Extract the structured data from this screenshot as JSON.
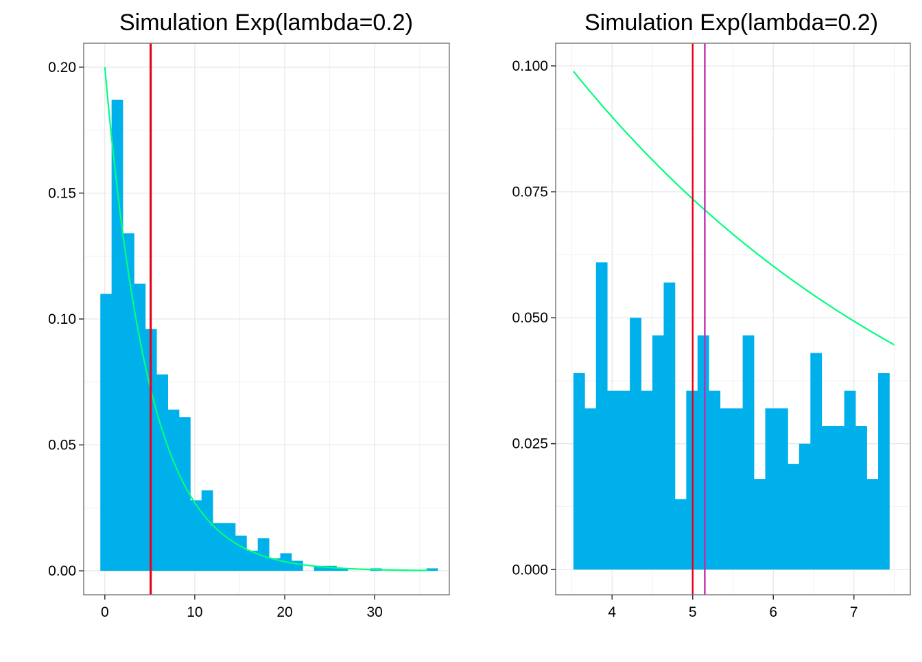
{
  "chart_data": [
    {
      "type": "bar",
      "title": "Simulation Exp(lambda=0.2)",
      "xlabel": "",
      "ylabel": "",
      "grid": true,
      "xlim": [
        -2.35,
        38.3
      ],
      "ylim": [
        -0.0095,
        0.2095
      ],
      "x_ticks": [
        "0",
        "10",
        "20",
        "30"
      ],
      "x_tick_values": [
        0,
        10,
        20,
        30
      ],
      "y_ticks": [
        "0.00",
        "0.05",
        "0.10",
        "0.15",
        "0.20"
      ],
      "y_tick_values": [
        0,
        0.05,
        0.1,
        0.15,
        0.2
      ],
      "bin_width": 1.25,
      "bin_left_edges": [
        -0.5,
        0.75,
        2.0,
        3.25,
        4.5,
        5.75,
        7.0,
        8.25,
        9.5,
        10.75,
        12.0,
        13.25,
        14.5,
        15.75,
        17.0,
        18.25,
        19.5,
        20.75,
        22.0,
        23.25,
        24.5,
        25.75,
        27.0,
        28.25,
        29.5,
        30.75,
        32.0,
        33.25,
        34.5,
        35.75
      ],
      "values": [
        0.11,
        0.187,
        0.134,
        0.114,
        0.096,
        0.078,
        0.064,
        0.061,
        0.028,
        0.032,
        0.019,
        0.019,
        0.014,
        0.008,
        0.013,
        0.005,
        0.007,
        0.004,
        0.0,
        0.002,
        0.002,
        0.001,
        0.0,
        0.0,
        0.001,
        0.0,
        0.0,
        0.0,
        0.0,
        0.001
      ],
      "bar_color": "#00b0eb",
      "density_curve": {
        "rate": 0.2,
        "x_range": [
          0,
          36
        ],
        "color": "#00ff7f"
      },
      "vlines": [
        {
          "x": 5.1,
          "color": "#e8001c"
        }
      ]
    },
    {
      "type": "bar",
      "title": "Simulation Exp(lambda=0.2)",
      "xlabel": "",
      "ylabel": "",
      "grid": true,
      "xlim": [
        3.3,
        7.7
      ],
      "ylim": [
        -0.005,
        0.1045
      ],
      "x_ticks": [
        "4",
        "5",
        "6",
        "7"
      ],
      "x_tick_values": [
        4,
        5,
        6,
        7
      ],
      "y_ticks": [
        "0.000",
        "0.025",
        "0.050",
        "0.075",
        "0.100"
      ],
      "y_tick_values": [
        0,
        0.025,
        0.05,
        0.075,
        0.1
      ],
      "bin_width": 0.1397,
      "bin_left_edges": [
        3.52,
        3.66,
        3.8,
        3.94,
        4.08,
        4.22,
        4.36,
        4.5,
        4.64,
        4.78,
        4.92,
        5.06,
        5.2,
        5.34,
        5.48,
        5.62,
        5.76,
        5.9,
        6.04,
        6.18,
        6.32,
        6.46,
        6.6,
        6.74,
        6.88,
        7.02,
        7.16,
        7.3
      ],
      "values": [
        0.039,
        0.032,
        0.061,
        0.0355,
        0.0355,
        0.05,
        0.0355,
        0.0465,
        0.057,
        0.014,
        0.0355,
        0.0465,
        0.0355,
        0.032,
        0.032,
        0.0465,
        0.018,
        0.032,
        0.032,
        0.021,
        0.025,
        0.043,
        0.0285,
        0.0285,
        0.0355,
        0.0285,
        0.018,
        0.039
      ],
      "bar_color": "#00b0eb",
      "density_curve": {
        "rate": 0.2,
        "x_range": [
          3.52,
          7.5
        ],
        "color": "#00ff7f"
      },
      "vlines": [
        {
          "x": 5.0,
          "color": "#e8001c"
        },
        {
          "x": 5.15,
          "color": "#c42cb0"
        }
      ]
    }
  ]
}
